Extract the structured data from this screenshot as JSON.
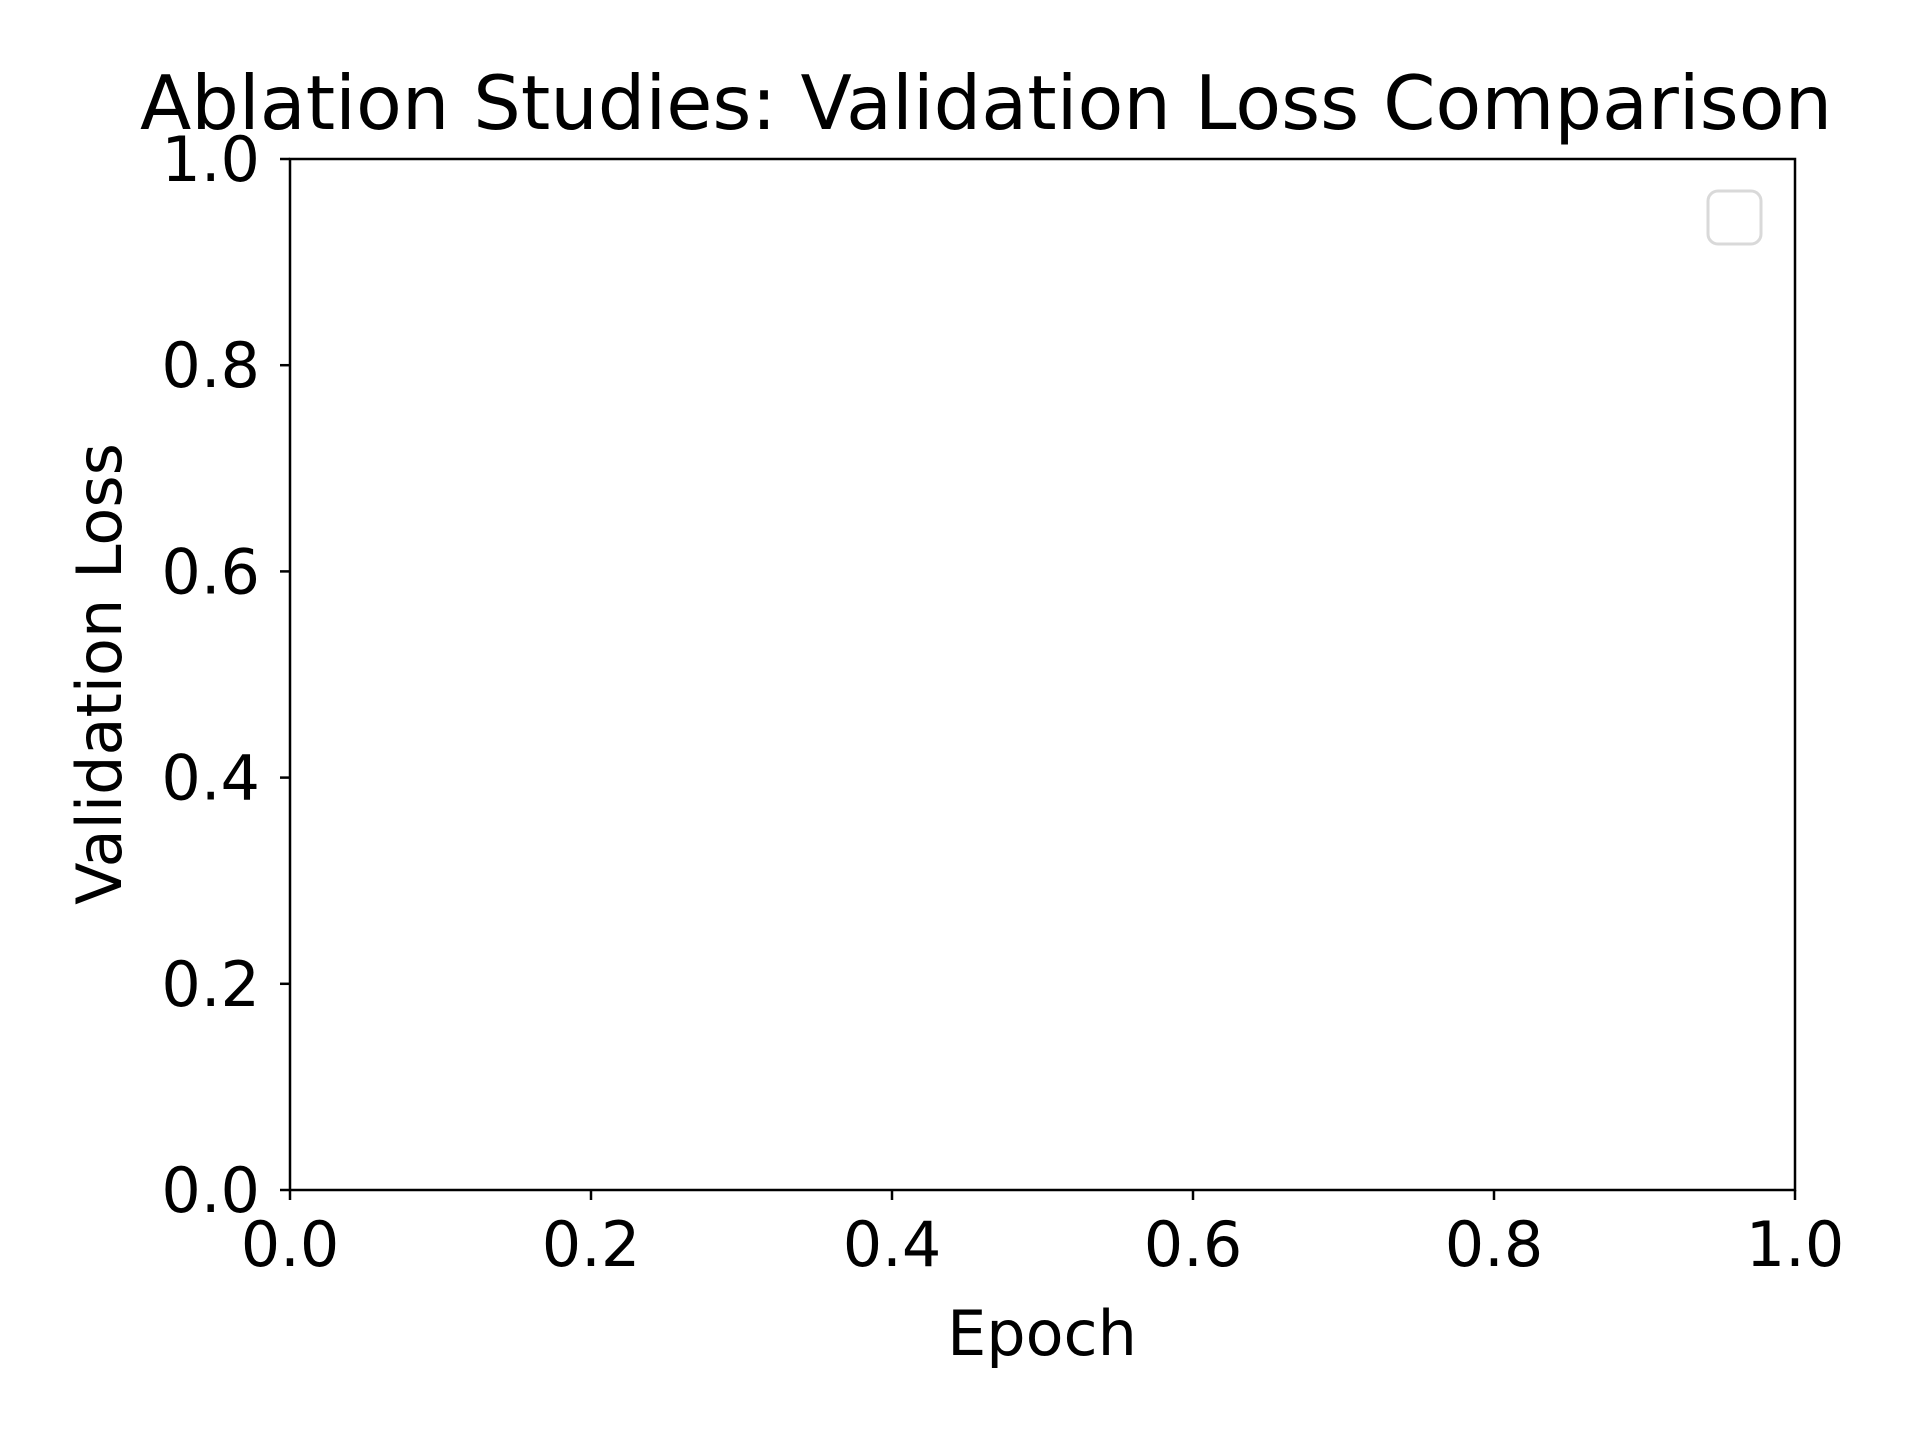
{
  "chart_data": {
    "type": "line",
    "title": "Ablation Studies: Validation Loss Comparison",
    "xlabel": "Epoch",
    "ylabel": "Validation Loss",
    "xlim": [
      0.0,
      1.0
    ],
    "ylim": [
      0.0,
      1.0
    ],
    "x_ticks": [
      "0.0",
      "0.2",
      "0.4",
      "0.6",
      "0.8",
      "1.0"
    ],
    "y_ticks": [
      "0.0",
      "0.2",
      "0.4",
      "0.6",
      "0.8",
      "1.0"
    ],
    "series": [],
    "legend": {
      "placement": "top-right",
      "entries": []
    },
    "grid": false
  },
  "colors": {
    "axis": "#000000",
    "background": "#ffffff",
    "legend_border": "#d9d9d9"
  }
}
